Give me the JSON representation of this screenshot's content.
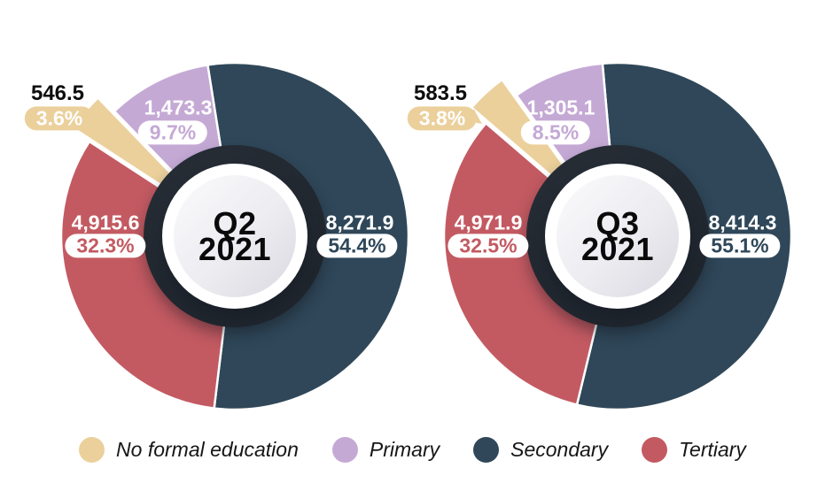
{
  "page": {
    "background": "#ffffff"
  },
  "legend": {
    "position": "bottom-center",
    "items": [
      {
        "label": "No formal education",
        "color": "#EBD09C"
      },
      {
        "label": "Primary",
        "color": "#C5A9D5"
      },
      {
        "label": "Secondary",
        "color": "#2F4759"
      },
      {
        "label": "Tertiary",
        "color": "#C35A62"
      }
    ]
  },
  "chart_data": [
    {
      "type": "pie",
      "subtype": "exploded-donut",
      "center_label": {
        "line1": "Q2",
        "line2": "2021"
      },
      "slices": [
        {
          "label": "No formal education",
          "value": 546.5,
          "value_label": "546.5",
          "percent": 3.6,
          "percent_label": "3.6%",
          "color": "#EBD09C",
          "exploded": true
        },
        {
          "label": "Primary",
          "value": 1473.3,
          "value_label": "1,473.3",
          "percent": 9.7,
          "percent_label": "9.7%",
          "color": "#C5A9D5",
          "exploded": false
        },
        {
          "label": "Secondary",
          "value": 8271.9,
          "value_label": "8,271.9",
          "percent": 54.4,
          "percent_label": "54.4%",
          "color": "#2F4759",
          "exploded": false
        },
        {
          "label": "Tertiary",
          "value": 4915.6,
          "value_label": "4,915.6",
          "percent": 32.3,
          "percent_label": "32.3%",
          "color": "#C35A62",
          "exploded": false
        }
      ],
      "draw_order": [
        2,
        3,
        0,
        1
      ],
      "start_angle_deg": -9
    },
    {
      "type": "pie",
      "subtype": "exploded-donut",
      "center_label": {
        "line1": "Q3",
        "line2": "2021"
      },
      "slices": [
        {
          "label": "No formal education",
          "value": 583.5,
          "value_label": "583.5",
          "percent": 3.8,
          "percent_label": "3.8%",
          "color": "#EBD09C",
          "exploded": true
        },
        {
          "label": "Primary",
          "value": 1305.1,
          "value_label": "1,305.1",
          "percent": 8.5,
          "percent_label": "8.5%",
          "color": "#C5A9D5",
          "exploded": false
        },
        {
          "label": "Secondary",
          "value": 8414.3,
          "value_label": "8,414.3",
          "percent": 55.1,
          "percent_label": "55.1%",
          "color": "#2F4759",
          "exploded": false
        },
        {
          "label": "Tertiary",
          "value": 4971.9,
          "value_label": "4,971.9",
          "percent": 32.5,
          "percent_label": "32.5%",
          "color": "#C35A62",
          "exploded": false
        }
      ],
      "draw_order": [
        2,
        3,
        0,
        1
      ],
      "start_angle_deg": -5
    }
  ]
}
